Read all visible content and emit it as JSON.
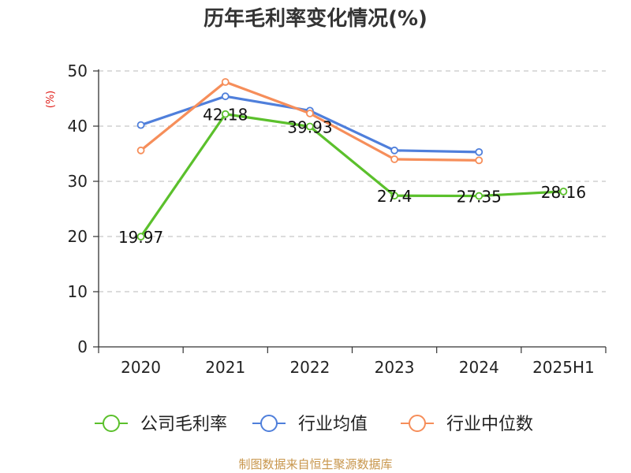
{
  "chart_data": {
    "type": "line",
    "title": "历年毛利率变化情况(%)",
    "ylabel": "(%)",
    "categories": [
      "2020",
      "2021",
      "2022",
      "2023",
      "2024",
      "2025H1"
    ],
    "ylim": [
      0,
      50
    ],
    "yticks": [
      0,
      10,
      20,
      30,
      40,
      50
    ],
    "grid": true,
    "legend_position": "bottom",
    "series": [
      {
        "name": "公司毛利率",
        "color": "#5bc02c",
        "show_labels": true,
        "values": [
          19.97,
          42.18,
          39.93,
          27.4,
          27.35,
          28.16
        ]
      },
      {
        "name": "行业均值",
        "color": "#4f7fdb",
        "show_labels": false,
        "values": [
          40.2,
          45.4,
          42.8,
          35.6,
          35.3,
          null
        ]
      },
      {
        "name": "行业中位数",
        "color": "#f68e5a",
        "show_labels": false,
        "values": [
          35.6,
          48.0,
          42.3,
          34.0,
          33.8,
          null
        ]
      }
    ]
  },
  "footer": {
    "source": "制图数据来自恒生聚源数据库"
  }
}
